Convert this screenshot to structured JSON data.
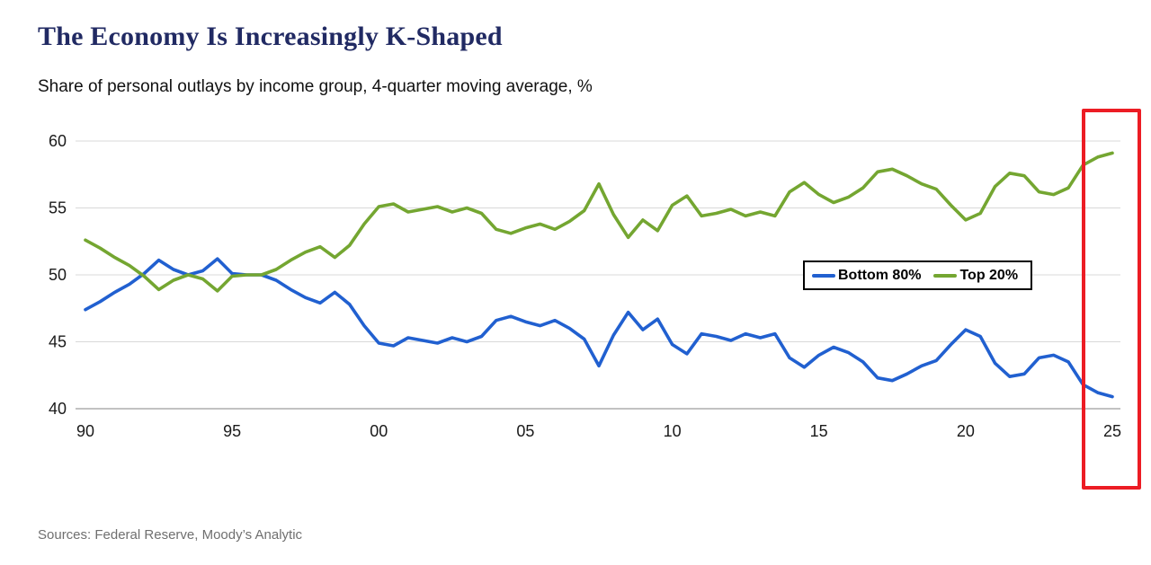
{
  "header": {
    "title": "The Economy Is Increasingly K-Shaped",
    "subtitle": "Share of personal outlays by income group, 4-quarter moving average, %"
  },
  "footer": {
    "sources": "Sources: Federal Reserve, Moody’s Analytic"
  },
  "colors": {
    "title": "#212a63",
    "grid": "#d8d8d8",
    "axis": "#9e9e9e",
    "tick_text": "#1a1a1a",
    "highlight_box": "#ec1c24",
    "legend_border": "#000000"
  },
  "chart_data": {
    "type": "line",
    "title": "The Economy Is Increasingly K-Shaped",
    "subtitle": "Share of personal outlays by income group, 4-quarter moving average, %",
    "xlabel": "",
    "ylabel": "",
    "ylim": [
      40,
      60
    ],
    "yticks": [
      40,
      45,
      50,
      55,
      60
    ],
    "xticks": [
      1990,
      1995,
      2000,
      2005,
      2010,
      2015,
      2020,
      2025
    ],
    "xtick_labels": [
      "90",
      "95",
      "00",
      "05",
      "10",
      "15",
      "20",
      "25"
    ],
    "grid": "horizontal",
    "legend_position": "middle-right",
    "annotation": "red box highlighting most recent period (2024-25)",
    "x": [
      1990,
      1990.5,
      1991,
      1991.5,
      1992,
      1992.5,
      1993,
      1993.5,
      1994,
      1994.5,
      1995,
      1995.5,
      1996,
      1996.5,
      1997,
      1997.5,
      1998,
      1998.5,
      1999,
      1999.5,
      2000,
      2000.5,
      2001,
      2001.5,
      2002,
      2002.5,
      2003,
      2003.5,
      2004,
      2004.5,
      2005,
      2005.5,
      2006,
      2006.5,
      2007,
      2007.5,
      2008,
      2008.5,
      2009,
      2009.5,
      2010,
      2010.5,
      2011,
      2011.5,
      2012,
      2012.5,
      2013,
      2013.5,
      2014,
      2014.5,
      2015,
      2015.5,
      2016,
      2016.5,
      2017,
      2017.5,
      2018,
      2018.5,
      2019,
      2019.5,
      2020,
      2020.5,
      2021,
      2021.5,
      2022,
      2022.5,
      2023,
      2023.5,
      2024,
      2024.5,
      2025
    ],
    "series": [
      {
        "name": "Bottom 80%",
        "color": "#2160d0",
        "values": [
          47.4,
          48.0,
          48.7,
          49.3,
          50.1,
          51.1,
          50.4,
          50.0,
          50.3,
          51.2,
          50.1,
          50.0,
          50.0,
          49.6,
          48.9,
          48.3,
          47.9,
          48.7,
          47.8,
          46.2,
          44.9,
          44.7,
          45.3,
          45.1,
          44.9,
          45.3,
          45.0,
          45.4,
          46.6,
          46.9,
          46.5,
          46.2,
          46.6,
          46.0,
          45.2,
          43.2,
          45.5,
          47.2,
          45.9,
          46.7,
          44.8,
          44.1,
          45.6,
          45.4,
          45.1,
          45.6,
          45.3,
          45.6,
          43.8,
          43.1,
          44.0,
          44.6,
          44.2,
          43.5,
          42.3,
          42.1,
          42.6,
          43.2,
          43.6,
          44.8,
          45.9,
          45.4,
          43.4,
          42.4,
          42.6,
          43.8,
          44.0,
          43.5,
          41.8,
          41.2,
          40.9
        ]
      },
      {
        "name": "Top 20%",
        "color": "#74a631",
        "values": [
          52.6,
          52.0,
          51.3,
          50.7,
          49.9,
          48.9,
          49.6,
          50.0,
          49.7,
          48.8,
          49.9,
          50.0,
          50.0,
          50.4,
          51.1,
          51.7,
          52.1,
          51.3,
          52.2,
          53.8,
          55.1,
          55.3,
          54.7,
          54.9,
          55.1,
          54.7,
          55.0,
          54.6,
          53.4,
          53.1,
          53.5,
          53.8,
          53.4,
          54.0,
          54.8,
          56.8,
          54.5,
          52.8,
          54.1,
          53.3,
          55.2,
          55.9,
          54.4,
          54.6,
          54.9,
          54.4,
          54.7,
          54.4,
          56.2,
          56.9,
          56.0,
          55.4,
          55.8,
          56.5,
          57.7,
          57.9,
          57.4,
          56.8,
          56.4,
          55.2,
          54.1,
          54.6,
          56.6,
          57.6,
          57.4,
          56.2,
          56.0,
          56.5,
          58.2,
          58.8,
          59.1
        ]
      }
    ]
  }
}
